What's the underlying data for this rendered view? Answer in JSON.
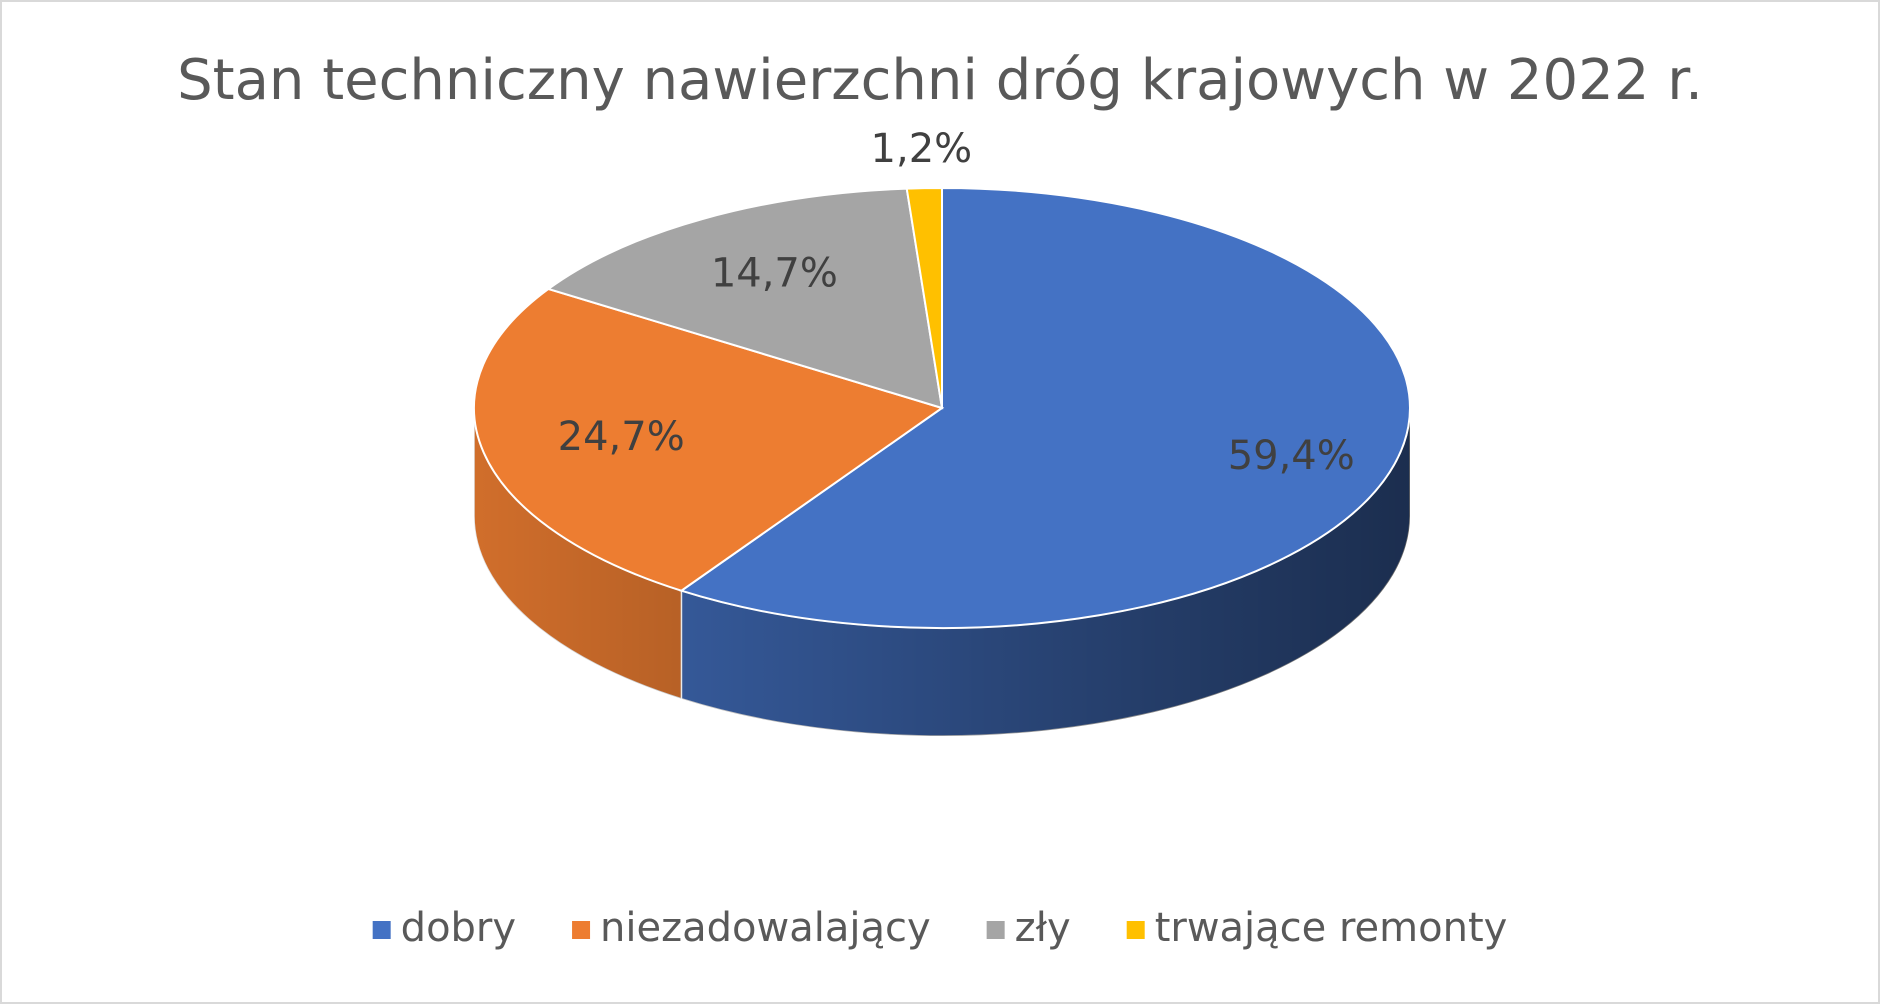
{
  "chart_data": {
    "type": "pie",
    "title": "Stan techniczny nawierzchni dróg krajowych w 2022 r.",
    "categories": [
      "dobry",
      "niezadowalający",
      "zły",
      "trwające remonty"
    ],
    "values": [
      59.4,
      24.7,
      14.7,
      1.2
    ],
    "value_labels": [
      "59,4%",
      "24,7%",
      "14,7%",
      "1,2%"
    ],
    "colors": [
      "#4472c4",
      "#ed7d31",
      "#a5a5a5",
      "#ffc000"
    ],
    "legend": "bottom"
  }
}
